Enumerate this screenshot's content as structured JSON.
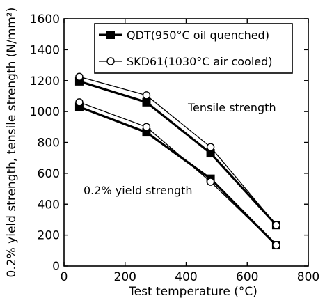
{
  "chart_data": {
    "type": "line",
    "xlabel": "Test temperature (°C)",
    "ylabel": "0.2% yield strength, tensile strength (N/mm²)",
    "xlim": [
      0,
      800
    ],
    "ylim": [
      0,
      1600
    ],
    "xticks": [
      0,
      200,
      400,
      600,
      800
    ],
    "yticks": [
      0,
      200,
      400,
      600,
      800,
      1000,
      1200,
      1400,
      1600
    ],
    "grid": false,
    "legend_position": "top-right",
    "series": [
      {
        "name": "QDT(950°C oil quenched)",
        "group": "Tensile strength",
        "marker": "filled-square",
        "x": [
          50,
          270,
          480,
          695
        ],
        "y": [
          1195,
          1060,
          730,
          265
        ]
      },
      {
        "name": "SKD61(1030°C air cooled)",
        "group": "Tensile strength",
        "marker": "open-circle",
        "x": [
          50,
          270,
          480,
          695
        ],
        "y": [
          1225,
          1105,
          770,
          265
        ]
      },
      {
        "name": "QDT(950°C oil quenched)",
        "group": "0.2% yield strength",
        "marker": "filled-square",
        "x": [
          50,
          270,
          480,
          695
        ],
        "y": [
          1030,
          865,
          565,
          135
        ]
      },
      {
        "name": "SKD61(1030°C air cooled)",
        "group": "0.2% yield strength",
        "marker": "open-circle",
        "x": [
          50,
          270,
          480,
          695
        ],
        "y": [
          1060,
          900,
          545,
          135
        ]
      }
    ],
    "legend": [
      {
        "label": "QDT(950°C oil quenched)",
        "marker": "filled-square"
      },
      {
        "label": "SKD61(1030°C air cooled)",
        "marker": "open-circle"
      }
    ],
    "annotations": [
      "Tensile strength",
      "0.2% yield strength"
    ]
  }
}
